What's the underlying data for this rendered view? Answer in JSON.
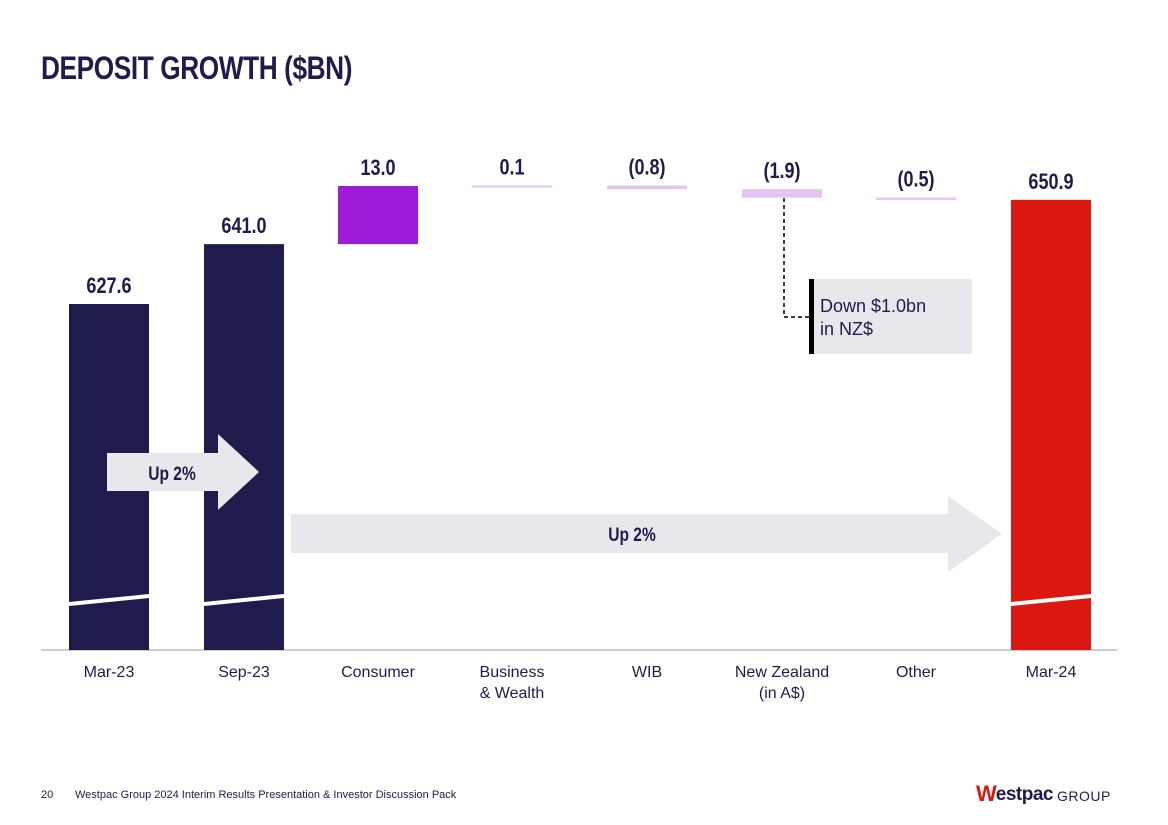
{
  "page": {
    "title": "DEPOSIT GROWTH ($BN)",
    "page_number": "20",
    "footer_text": "Westpac Group 2024 Interim Results Presentation & Investor Discussion Pack"
  },
  "logo": {
    "mark": "W",
    "word": "estpac",
    "group": "GROUP"
  },
  "colors": {
    "navy": "#1f1c4d",
    "purple": "#9e1bd9",
    "lilac": "#e7c3f0",
    "red": "#da1710",
    "grey": "#e8e8ec"
  },
  "annotation": {
    "line1": "Down $1.0bn",
    "line2": "in NZ$"
  },
  "arrows": {
    "short_label": "Up 2%",
    "long_label": "Up 2%"
  },
  "chart_data": {
    "type": "waterfall",
    "title": "DEPOSIT GROWTH ($BN)",
    "axis_break": true,
    "categories": [
      {
        "label": [
          "Mar-23"
        ],
        "value": 627.6,
        "kind": "total",
        "label_text": "627.6"
      },
      {
        "label": [
          "Sep-23"
        ],
        "value": 641.0,
        "kind": "total",
        "label_text": "641.0"
      },
      {
        "label": [
          "Consumer"
        ],
        "value": 13.0,
        "kind": "delta",
        "label_text": "13.0"
      },
      {
        "label": [
          "Business",
          "& Wealth"
        ],
        "value": 0.1,
        "kind": "delta",
        "label_text": "0.1"
      },
      {
        "label": [
          "WIB"
        ],
        "value": -0.8,
        "kind": "delta",
        "label_text": "(0.8)"
      },
      {
        "label": [
          "New Zealand",
          "(in A$)"
        ],
        "value": -1.9,
        "kind": "delta",
        "label_text": "(1.9)"
      },
      {
        "label": [
          "Other"
        ],
        "value": -0.5,
        "kind": "delta",
        "label_text": "(0.5)"
      },
      {
        "label": [
          "Mar-24"
        ],
        "value": 650.9,
        "kind": "total",
        "label_text": "650.9"
      }
    ]
  }
}
